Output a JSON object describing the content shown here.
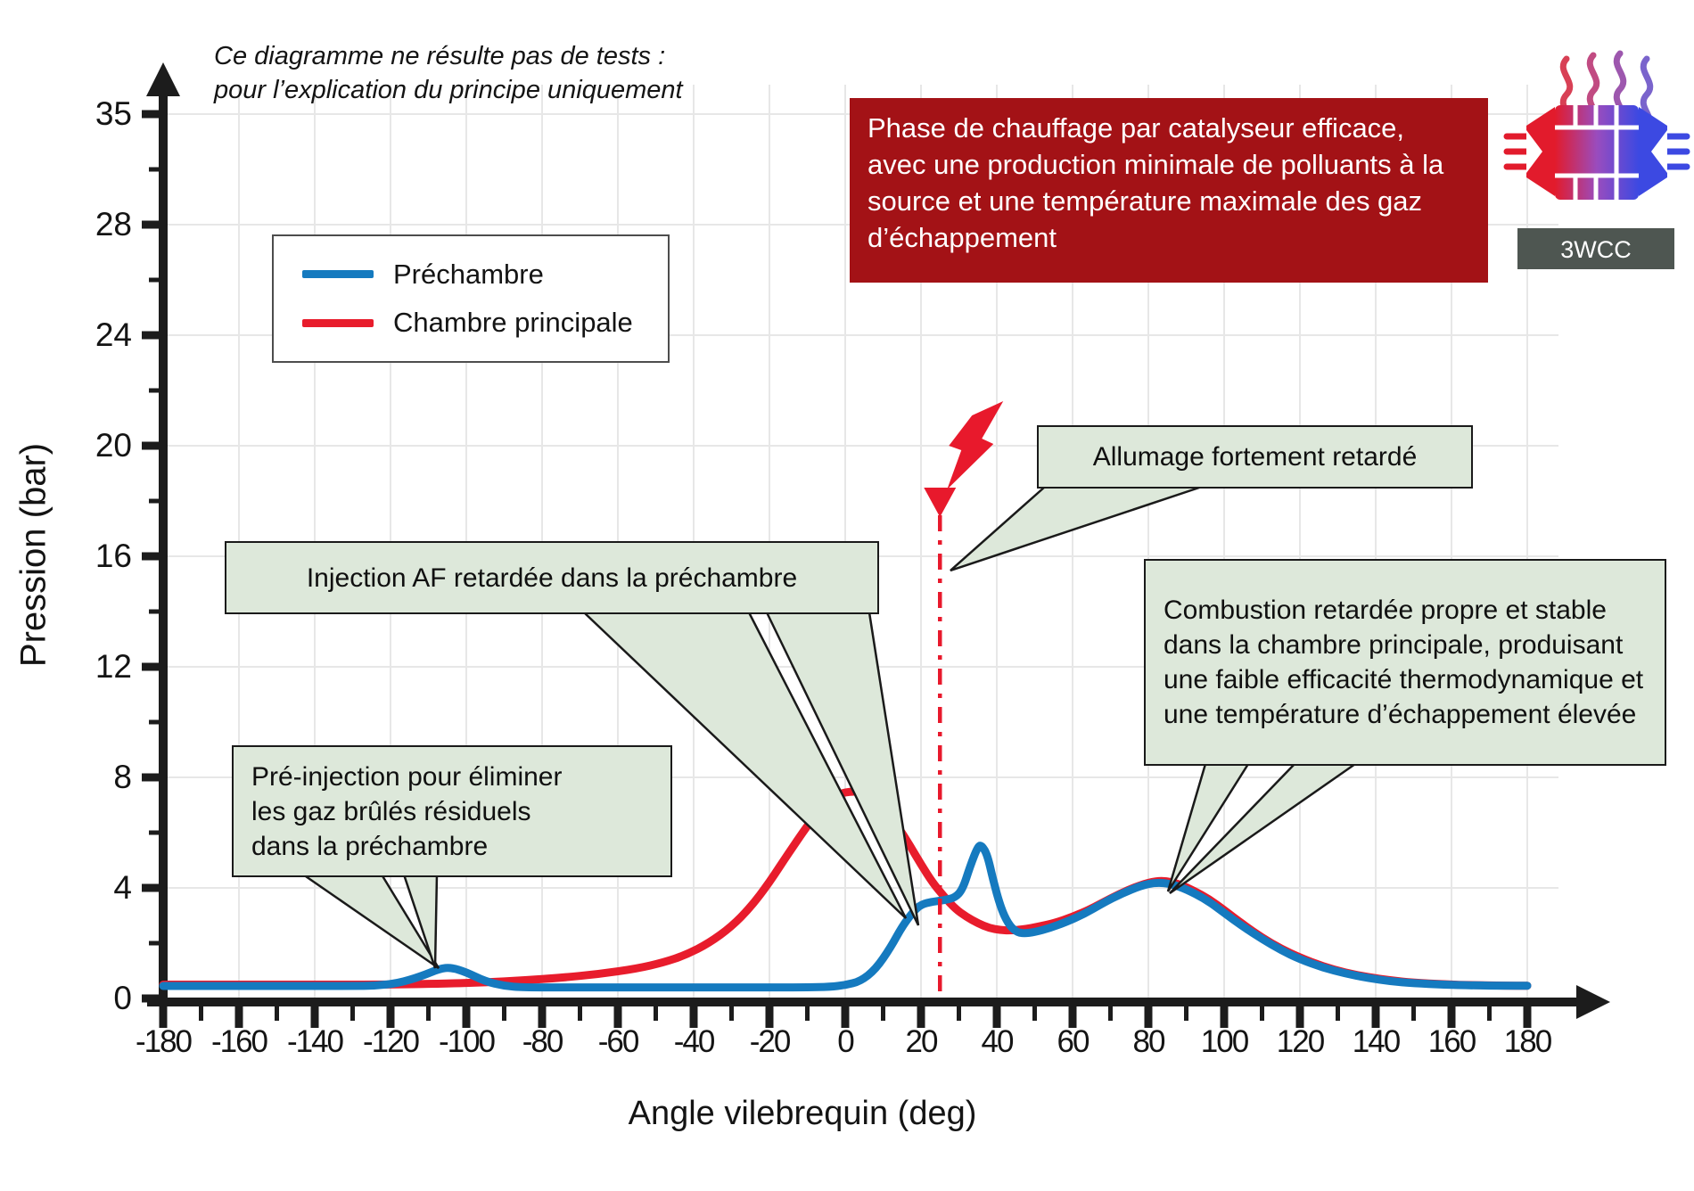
{
  "note": {
    "text": "Ce diagramme ne résulte pas de tests :\npour l’explication du principe uniquement"
  },
  "banner": {
    "text": "Phase de chauffage par catalyseur efficace, avec une production minimale de polluants à la source et une température maximale des gaz d’échappement",
    "bg": "#a31216"
  },
  "callouts": {
    "pre_injection": {
      "text": "Pré-injection pour éliminer\nles gaz brûlés résiduels\ndans la préchambre"
    },
    "injection": {
      "text": "Injection AF retardée dans la préchambre"
    },
    "allumage": {
      "text": "Allumage fortement retardé"
    },
    "combustion": {
      "text": "Combustion retardée propre et stable dans la chambre principale, produisant une faible efficacité thermodynamique et une température d’échappement élevée"
    }
  },
  "catalyst_icon": {
    "label": "3WCC"
  },
  "colors": {
    "callout_bg": "#dde8da",
    "banner_bg": "#a31216",
    "axis": "#1c1c1c",
    "grid": "#e7e7e7",
    "ignition": "#e8192c",
    "icon_label_bg": "#4e5651"
  },
  "chart_data": {
    "type": "line",
    "title": "",
    "xlabel": "Angle vilebrequin (deg)",
    "ylabel": "Pression (bar)",
    "xlim": [
      -180,
      180
    ],
    "ylim": [
      0,
      35
    ],
    "grid": true,
    "legend_position": "upper-left",
    "x_ticks": [
      -180,
      -160,
      -140,
      -120,
      -100,
      -80,
      -60,
      -40,
      -20,
      0,
      20,
      40,
      60,
      80,
      100,
      120,
      140,
      160,
      180
    ],
    "y_ticks": [
      0,
      4,
      8,
      12,
      16,
      20,
      24,
      28,
      35
    ],
    "ignition": {
      "x_deg": 25,
      "style": "dash-dot",
      "marker": "down-triangle",
      "bolt": true
    },
    "series": [
      {
        "name": "Chambre principale",
        "color": "#e81c2c",
        "points": [
          [
            -180,
            0.5
          ],
          [
            -160,
            0.5
          ],
          [
            -140,
            0.5
          ],
          [
            -120,
            0.5
          ],
          [
            -105,
            0.54
          ],
          [
            -95,
            0.58
          ],
          [
            -85,
            0.65
          ],
          [
            -75,
            0.75
          ],
          [
            -65,
            0.88
          ],
          [
            -55,
            1.08
          ],
          [
            -48,
            1.3
          ],
          [
            -42,
            1.58
          ],
          [
            -36,
            2.0
          ],
          [
            -30,
            2.6
          ],
          [
            -25,
            3.3
          ],
          [
            -20,
            4.2
          ],
          [
            -15,
            5.25
          ],
          [
            -10,
            6.25
          ],
          [
            -6,
            6.95
          ],
          [
            -2,
            7.4
          ],
          [
            2,
            7.5
          ],
          [
            5,
            7.45
          ],
          [
            8,
            7.2
          ],
          [
            11,
            6.8
          ],
          [
            14,
            6.2
          ],
          [
            17,
            5.55
          ],
          [
            20,
            4.85
          ],
          [
            23,
            4.2
          ],
          [
            26,
            3.7
          ],
          [
            29,
            3.25
          ],
          [
            32,
            2.95
          ],
          [
            35,
            2.72
          ],
          [
            38,
            2.55
          ],
          [
            41,
            2.47
          ],
          [
            44,
            2.46
          ],
          [
            47,
            2.5
          ],
          [
            51,
            2.6
          ],
          [
            55,
            2.72
          ],
          [
            60,
            2.95
          ],
          [
            65,
            3.25
          ],
          [
            70,
            3.62
          ],
          [
            75,
            3.95
          ],
          [
            80,
            4.2
          ],
          [
            84,
            4.27
          ],
          [
            88,
            4.15
          ],
          [
            92,
            3.9
          ],
          [
            96,
            3.6
          ],
          [
            100,
            3.2
          ],
          [
            105,
            2.68
          ],
          [
            110,
            2.2
          ],
          [
            115,
            1.8
          ],
          [
            120,
            1.48
          ],
          [
            126,
            1.16
          ],
          [
            132,
            0.93
          ],
          [
            138,
            0.77
          ],
          [
            144,
            0.65
          ],
          [
            150,
            0.57
          ],
          [
            158,
            0.51
          ],
          [
            166,
            0.48
          ],
          [
            174,
            0.46
          ],
          [
            180,
            0.46
          ]
        ]
      },
      {
        "name": "Préchambre",
        "color": "#157abf",
        "points": [
          [
            -180,
            0.45
          ],
          [
            -160,
            0.45
          ],
          [
            -140,
            0.45
          ],
          [
            -130,
            0.45
          ],
          [
            -124,
            0.46
          ],
          [
            -118,
            0.55
          ],
          [
            -112,
            0.8
          ],
          [
            -107,
            1.08
          ],
          [
            -104,
            1.12
          ],
          [
            -100,
            0.95
          ],
          [
            -95,
            0.62
          ],
          [
            -90,
            0.45
          ],
          [
            -85,
            0.4
          ],
          [
            -75,
            0.4
          ],
          [
            -60,
            0.4
          ],
          [
            -40,
            0.4
          ],
          [
            -20,
            0.4
          ],
          [
            -10,
            0.4
          ],
          [
            -4,
            0.42
          ],
          [
            0,
            0.48
          ],
          [
            4,
            0.62
          ],
          [
            8,
            1.05
          ],
          [
            12,
            1.85
          ],
          [
            15,
            2.6
          ],
          [
            18,
            3.15
          ],
          [
            20,
            3.4
          ],
          [
            23,
            3.5
          ],
          [
            26,
            3.55
          ],
          [
            29,
            3.65
          ],
          [
            31,
            3.95
          ],
          [
            33,
            4.8
          ],
          [
            35,
            5.5
          ],
          [
            36,
            5.55
          ],
          [
            37.5,
            5.2
          ],
          [
            39,
            4.3
          ],
          [
            41,
            3.3
          ],
          [
            43,
            2.7
          ],
          [
            45,
            2.42
          ],
          [
            47,
            2.35
          ],
          [
            50,
            2.4
          ],
          [
            54,
            2.55
          ],
          [
            58,
            2.75
          ],
          [
            63,
            3.05
          ],
          [
            68,
            3.45
          ],
          [
            73,
            3.8
          ],
          [
            78,
            4.08
          ],
          [
            82,
            4.2
          ],
          [
            86,
            4.15
          ],
          [
            90,
            3.95
          ],
          [
            95,
            3.6
          ],
          [
            100,
            3.1
          ],
          [
            105,
            2.6
          ],
          [
            110,
            2.15
          ],
          [
            115,
            1.75
          ],
          [
            120,
            1.42
          ],
          [
            126,
            1.12
          ],
          [
            132,
            0.9
          ],
          [
            138,
            0.74
          ],
          [
            144,
            0.62
          ],
          [
            150,
            0.55
          ],
          [
            158,
            0.5
          ],
          [
            166,
            0.47
          ],
          [
            174,
            0.46
          ],
          [
            180,
            0.46
          ]
        ]
      }
    ]
  }
}
